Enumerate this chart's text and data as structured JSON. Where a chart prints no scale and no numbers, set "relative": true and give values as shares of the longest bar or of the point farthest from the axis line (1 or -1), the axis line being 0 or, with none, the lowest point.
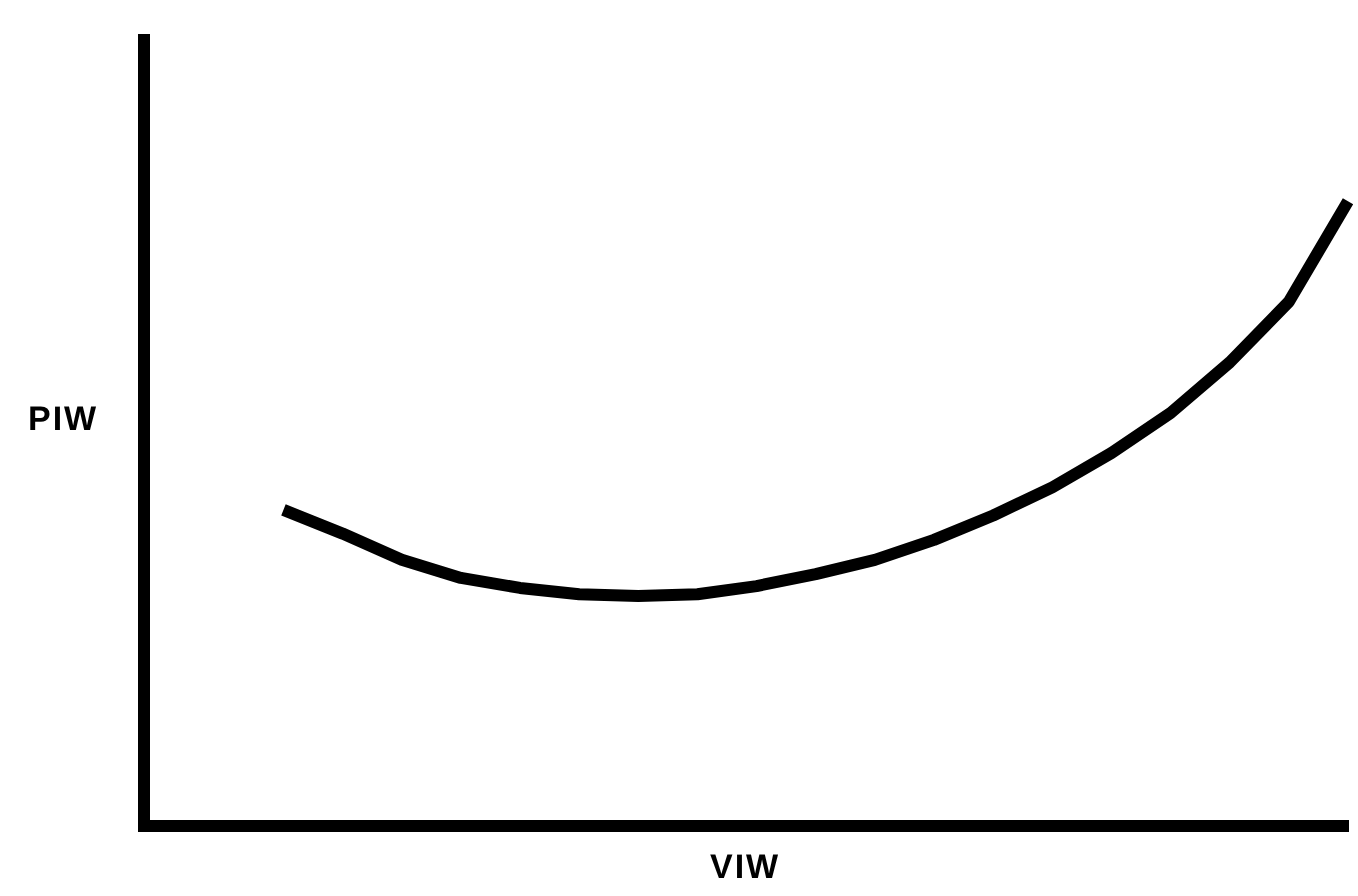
{
  "chart_data": {
    "type": "line",
    "relative": true,
    "xlabel": "VIW",
    "ylabel": "PIW",
    "categories": [
      null,
      null,
      null,
      null,
      null,
      null,
      null,
      null,
      null,
      null,
      null,
      null,
      null,
      null,
      null,
      null,
      null,
      null,
      null
    ],
    "series": [
      {
        "color": "#000000",
        "values": [
          0.506,
          0.468,
          0.426,
          0.397,
          0.381,
          0.371,
          0.368,
          0.371,
          0.384,
          0.403,
          0.426,
          0.458,
          0.497,
          0.542,
          0.597,
          0.661,
          0.742,
          0.839,
          1
        ]
      }
    ],
    "marker": "none",
    "line_style": "solid"
  }
}
